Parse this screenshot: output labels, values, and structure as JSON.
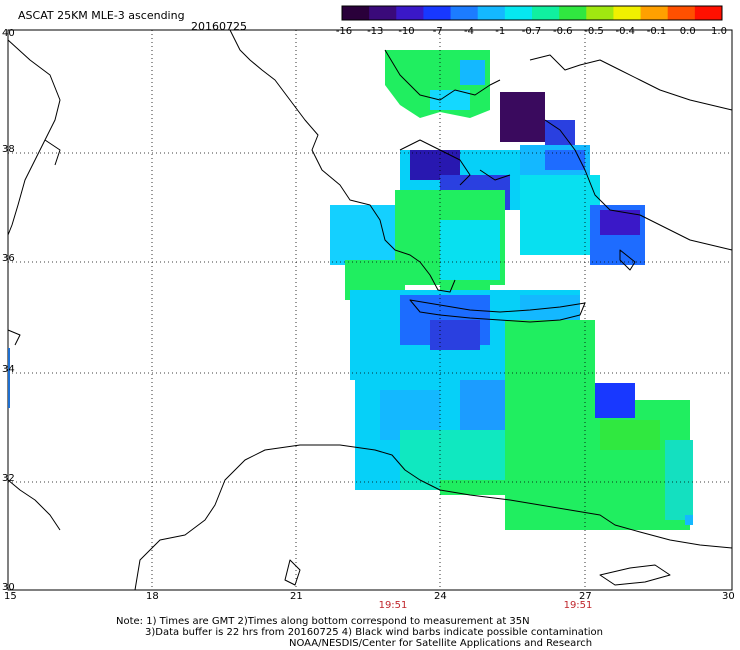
{
  "header": {
    "title": "ASCAT 25KM MLE-3 ascending",
    "date": "20160725"
  },
  "colorbar": {
    "labels": [
      "-16",
      "-13",
      "-10",
      "-7",
      "-4",
      "-1",
      "-0.7",
      "-0.6",
      "-0.5",
      "-0.4",
      "-0.1",
      "0.0",
      "1.0"
    ],
    "colors": [
      "#2a003a",
      "#3a0a7a",
      "#3a18c8",
      "#1838ff",
      "#1c7cff",
      "#14b8ff",
      "#06e8f0",
      "#10f0a0",
      "#30e840",
      "#a0e810",
      "#f0f000",
      "#ffa000",
      "#ff5000",
      "#ff1000"
    ]
  },
  "axes": {
    "lon_labels": [
      "15",
      "18",
      "21",
      "24",
      "27",
      "30"
    ],
    "lat_labels": [
      "40",
      "38",
      "36",
      "34",
      "32",
      "30"
    ]
  },
  "times": [
    "19:51",
    "19:51"
  ],
  "notes": [
    "Note: 1) Times are GMT 2)Times along bottom correspond to measurement at 35N",
    "3)Data buffer is 22 hrs from 20160725 4) Black wind barbs indicate possible contamination",
    "NOAA/NESDIS/Center for Satellite Applications and Research"
  ]
}
